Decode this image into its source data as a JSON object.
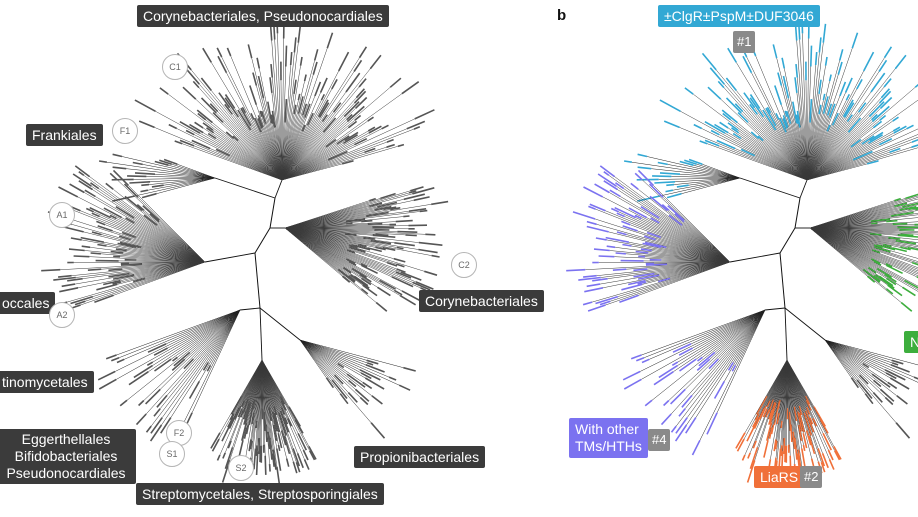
{
  "panels": {
    "b": "b"
  },
  "panel_a": {
    "clade_labels": [
      {
        "id": "cor-pseudo",
        "text": "Corynebacteriales, Pseudonocardiales"
      },
      {
        "id": "frankiales",
        "text": "Frankiales"
      },
      {
        "id": "micrococcales",
        "text": "occales"
      },
      {
        "id": "corynebacteriales",
        "text": "Corynebacteriales"
      },
      {
        "id": "actinomycetales",
        "text": "tinomycetales"
      },
      {
        "id": "egg-bif-pseudo",
        "lines": [
          "Eggerthellales",
          "Bifidobacteriales",
          "Pseudonocardiales"
        ]
      },
      {
        "id": "propionibacteriales",
        "text": "Propionibacteriales"
      },
      {
        "id": "strep",
        "text": "Streptomycetales, Streptosporingiales"
      }
    ],
    "clade_markers": [
      "C1",
      "F1",
      "A1",
      "C2",
      "A2",
      "F2",
      "S1",
      "S2"
    ]
  },
  "panel_b": {
    "groups": [
      {
        "id": "g1",
        "text": "±ClgR±PspM±DUF3046",
        "number": "#1",
        "color": "#32a8d4"
      },
      {
        "id": "g2",
        "text": "LiaRS",
        "number": "#2",
        "color": "#f07039"
      },
      {
        "id": "g3",
        "text": "N",
        "color": "#3dae3d"
      },
      {
        "id": "g4",
        "lines": [
          "With other",
          "TMs/HTHs"
        ],
        "number": "#4",
        "color": "#7b72f0"
      }
    ],
    "colors": {
      "clgr": "#32a8d4",
      "liars": "#f07039",
      "other": "#7b72f0",
      "green": "#3dae3d",
      "neutral": "#555555"
    }
  }
}
